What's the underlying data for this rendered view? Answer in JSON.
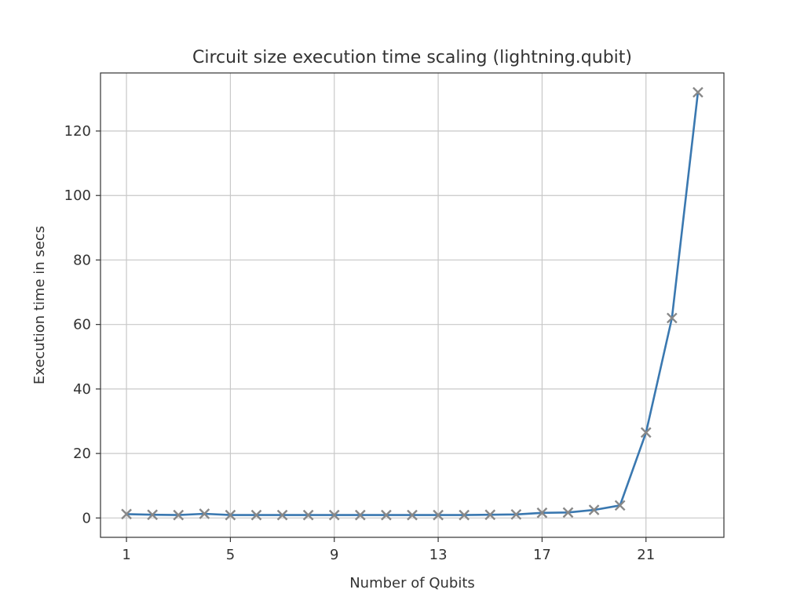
{
  "chart_data": {
    "type": "line",
    "title": "Circuit size execution time scaling (lightning.qubit)",
    "xlabel": "Number of Qubits",
    "ylabel": "Execution time in secs",
    "xlim": [
      0,
      24
    ],
    "ylim": [
      -6,
      138
    ],
    "xticks": [
      1,
      5,
      9,
      13,
      17,
      21
    ],
    "yticks": [
      0,
      20,
      40,
      60,
      80,
      100,
      120
    ],
    "grid": true,
    "series": [
      {
        "line_color": "#3a78b0",
        "marker_color": "#888888",
        "marker": "x",
        "x": [
          1,
          2,
          3,
          4,
          5,
          6,
          7,
          8,
          9,
          10,
          11,
          12,
          13,
          14,
          15,
          16,
          17,
          18,
          19,
          20,
          21,
          22,
          23
        ],
        "y": [
          1.2,
          1.0,
          0.9,
          1.3,
          0.9,
          0.9,
          0.9,
          0.9,
          0.9,
          0.9,
          0.9,
          0.9,
          0.9,
          0.9,
          1.0,
          1.1,
          1.6,
          1.7,
          2.5,
          3.9,
          26.5,
          62.0,
          132.0
        ]
      }
    ]
  }
}
